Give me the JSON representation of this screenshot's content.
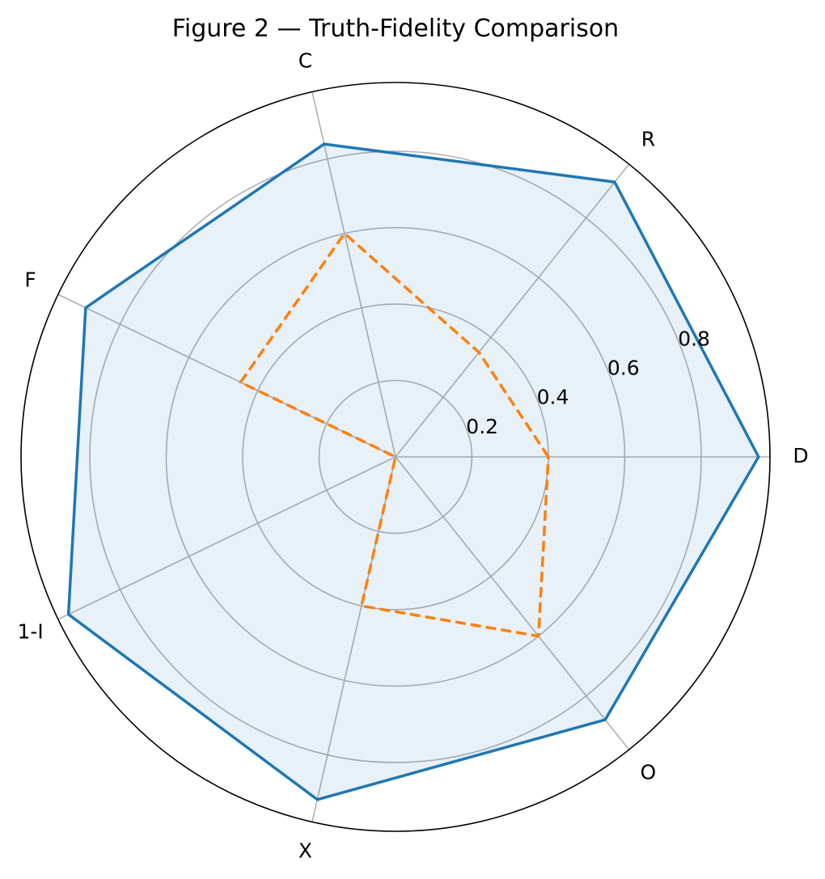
{
  "chart_data": {
    "type": "radar",
    "title": "Figure 2 — Truth-Fidelity Comparison",
    "axes": [
      "D",
      "R",
      "C",
      "F",
      "1-I",
      "X",
      "O"
    ],
    "radial_ticks": [
      "0.2",
      "0.4",
      "0.6",
      "0.8"
    ],
    "radial_tick_values": [
      0.2,
      0.4,
      0.6,
      0.8
    ],
    "rmax": 0.98,
    "grid": true,
    "series": [
      {
        "values": [
          0.95,
          0.92,
          0.84,
          0.9,
          0.95,
          0.92,
          0.88
        ],
        "color": "#1f77b4",
        "line_style": "solid",
        "fill": true,
        "fill_color": "#1f77b4"
      },
      {
        "values": [
          0.4,
          0.35,
          0.6,
          0.45,
          0.0,
          0.4,
          0.6
        ],
        "color": "#ff7f0e",
        "line_style": "dashed",
        "fill": false
      }
    ]
  }
}
